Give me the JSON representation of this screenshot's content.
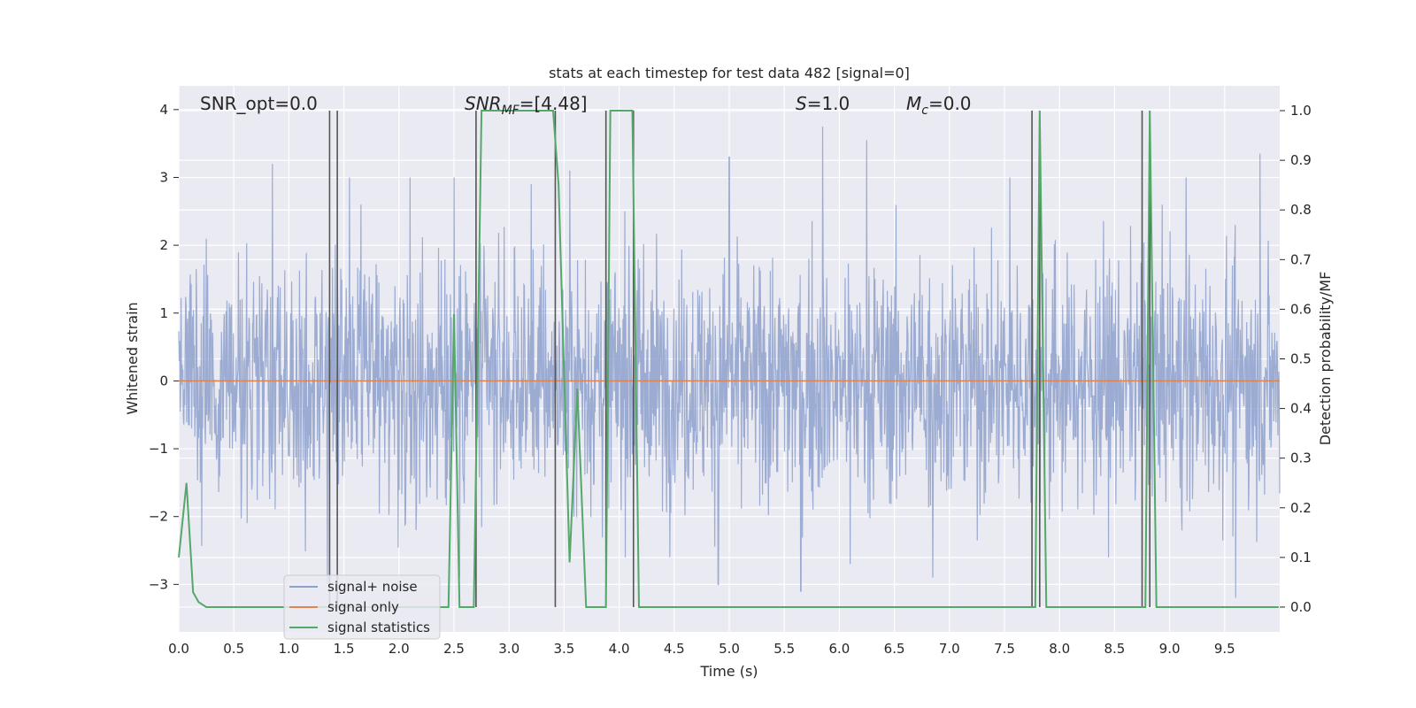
{
  "chart_data": {
    "type": "line",
    "title": "stats at each timestep for test data 482 [signal=0]",
    "xlabel": "Time (s)",
    "ylabel_left": "Whitened strain",
    "ylabel_right": "Detection probability/MF",
    "xlim": [
      0,
      10
    ],
    "ylim_left": [
      -3.7,
      4.35
    ],
    "ylim_right": [
      -0.05,
      1.05
    ],
    "x_ticks": [
      "0.0",
      "0.5",
      "1.0",
      "1.5",
      "2.0",
      "2.5",
      "3.0",
      "3.5",
      "4.0",
      "4.5",
      "5.0",
      "5.5",
      "6.0",
      "6.5",
      "7.0",
      "7.5",
      "8.0",
      "8.5",
      "9.0",
      "9.5"
    ],
    "y_ticks_left": [
      "−3",
      "−2",
      "−1",
      "0",
      "1",
      "2",
      "3",
      "4"
    ],
    "y_ticks_left_values": [
      -3,
      -2,
      -1,
      0,
      1,
      2,
      3,
      4
    ],
    "y_ticks_right": [
      "0.0",
      "0.1",
      "0.2",
      "0.3",
      "0.4",
      "0.5",
      "0.6",
      "0.7",
      "0.8",
      "0.9",
      "1.0"
    ],
    "y_ticks_right_values": [
      0,
      0.1,
      0.2,
      0.3,
      0.4,
      0.5,
      0.6,
      0.7,
      0.8,
      0.9,
      1.0
    ],
    "grid": true,
    "legend_position": "lower-left",
    "annotations": {
      "snr_opt": "SNR_opt=0.0",
      "snr_mf_main": "SNR",
      "snr_mf_sub": "MF",
      "snr_mf_rest": "=[4.48]",
      "s_italic": "S",
      "s_rest": "=1.0",
      "mc_italic": "M",
      "mc_sub": "c",
      "mc_rest": "=0.0"
    },
    "series": [
      {
        "name": "signal+ noise",
        "color": "#8da0cb",
        "style": "noise",
        "noise_sigma": 0.9,
        "peak_times": [
          0.85,
          1.55,
          2.1,
          2.5,
          3.2,
          3.55,
          4.05,
          5.0,
          5.85,
          6.25,
          7.55,
          9.15,
          9.82
        ],
        "peak_values": [
          3.2,
          3.0,
          3.0,
          3.0,
          2.9,
          3.1,
          2.5,
          3.3,
          3.75,
          3.55,
          3.0,
          3.0,
          3.35
        ],
        "trough_times": [
          1.35,
          2.55,
          4.9,
          5.65,
          6.1,
          6.85,
          9.6
        ],
        "trough_values": [
          -3.0,
          -2.9,
          -3.0,
          -3.1,
          -2.7,
          -2.9,
          -3.2
        ]
      },
      {
        "name": "signal only",
        "color": "#dd8452",
        "style": "constant",
        "value": 0.0
      },
      {
        "name": "signal statistics",
        "color": "#55a868",
        "axis": "right",
        "x": [
          0,
          0.07,
          0.13,
          0.18,
          0.25,
          0.3,
          2.45,
          2.5,
          2.55,
          2.68,
          2.75,
          3.4,
          3.45,
          3.55,
          3.62,
          3.7,
          3.8,
          3.88,
          3.92,
          4.0,
          4.12,
          4.18,
          7.78,
          7.82,
          7.88,
          8.78,
          8.82,
          8.88,
          9.99
        ],
        "y": [
          0.1,
          0.25,
          0.03,
          0.01,
          0.0,
          0.0,
          0.0,
          0.59,
          0.0,
          0.0,
          1.0,
          1.0,
          0.85,
          0.09,
          0.44,
          0.0,
          0.0,
          0.0,
          1.0,
          1.0,
          1.0,
          0.0,
          0.0,
          1.0,
          0.0,
          0.0,
          1.0,
          0.0,
          0.0
        ]
      }
    ],
    "vertical_lines": {
      "color": "#555555",
      "x": [
        1.37,
        1.44,
        2.7,
        3.42,
        3.88,
        4.13,
        7.75,
        7.82,
        8.75,
        8.82
      ],
      "y_top": [
        1.0,
        1.0,
        1.0,
        1.0,
        1.0,
        1.0,
        1.0,
        1.0,
        1.0,
        1.0
      ],
      "y_bottom": [
        0.0,
        0.0,
        0.0,
        0.0,
        0.0,
        0.0,
        0.0,
        0.0,
        0.0,
        0.0
      ]
    }
  }
}
